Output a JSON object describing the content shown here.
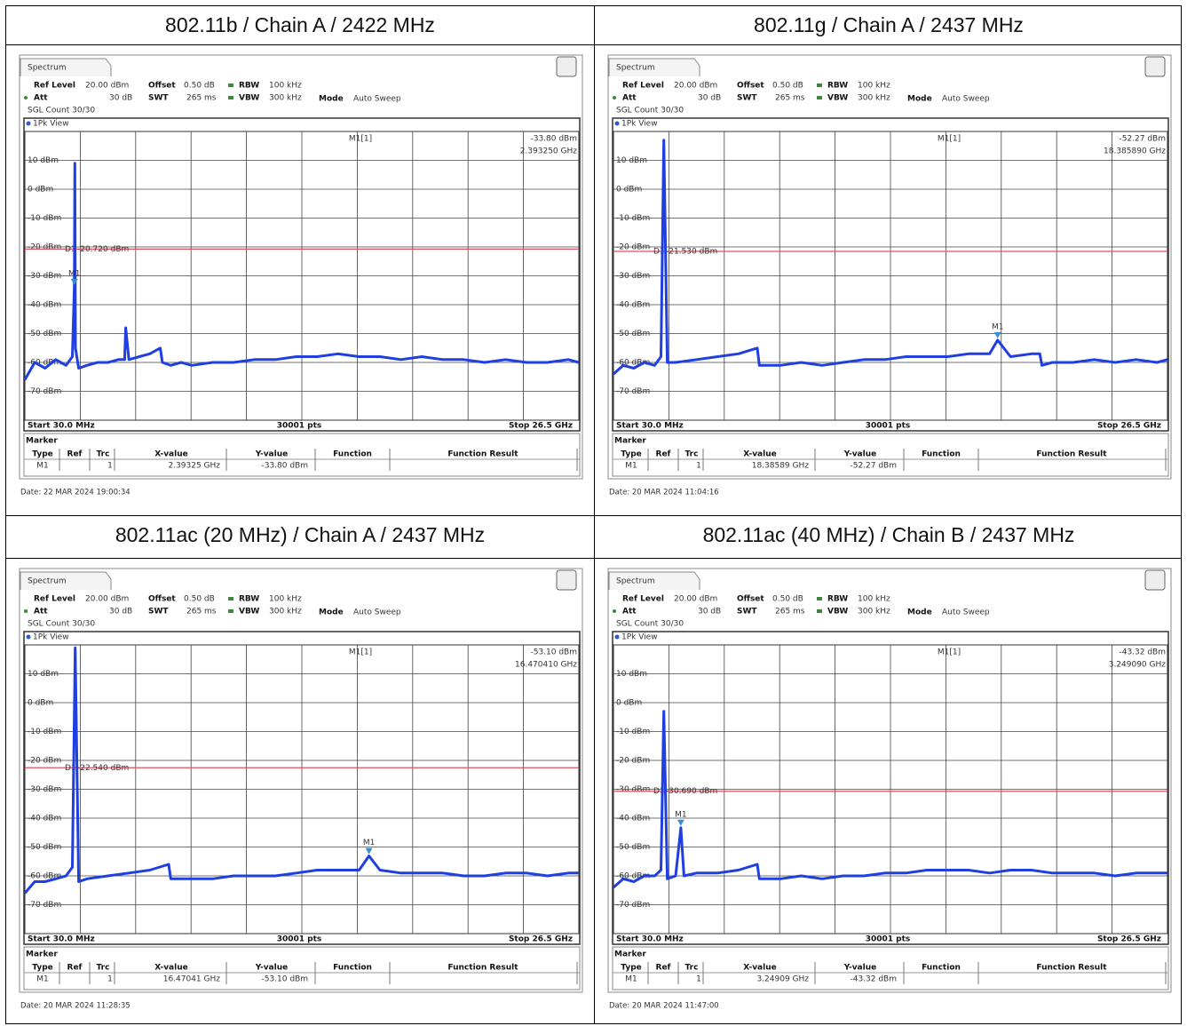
{
  "chart_data": [
    {
      "type": "line",
      "title": "802.11b / Chain A / 2422 MHz",
      "tab": "Spectrum",
      "settings": {
        "ref_level_label": "Ref Level",
        "ref_level": "20.00 dBm",
        "offset_label": "Offset",
        "offset": "0.50 dB",
        "rbw_label": "RBW",
        "rbw": "100 kHz",
        "att_label": "Att",
        "att": "30 dB",
        "swt_label": "SWT",
        "swt": "265 ms",
        "vbw_label": "VBW",
        "vbw": "300 kHz",
        "mode_label": "Mode",
        "mode": "Auto Sweep",
        "count": "SGL Count 30/30"
      },
      "view": "1Pk View",
      "start_label": "Start 30.0 MHz",
      "points_label": "30001 pts",
      "stop_label": "Stop 26.5 GHz",
      "xlim": [
        0.03,
        26.5
      ],
      "ylim": [
        -80,
        20
      ],
      "yticks": [
        {
          "value": 10,
          "label": "10 dBm"
        },
        {
          "value": 0,
          "label": "0 dBm"
        },
        {
          "value": -10,
          "label": "-10 dBm"
        },
        {
          "value": -20,
          "label": "-20 dBm"
        },
        {
          "value": -30,
          "label": "-30 dBm"
        },
        {
          "value": -40,
          "label": "-40 dBm"
        },
        {
          "value": -50,
          "label": "-50 dBm"
        },
        {
          "value": -60,
          "label": "-60 dBm"
        },
        {
          "value": -70,
          "label": "-70 dBm"
        }
      ],
      "grid": true,
      "color": "#1f3fe0",
      "x": [
        0.03,
        0.5,
        1,
        1.5,
        2,
        2.3,
        2.39325,
        2.42,
        2.45,
        2.6,
        3,
        3.5,
        4,
        4.5,
        4.8,
        4.85,
        5,
        5.5,
        6,
        6.5,
        6.6,
        7,
        7.5,
        8,
        9,
        10,
        11,
        12,
        13,
        14,
        15,
        16,
        17,
        18,
        19,
        20,
        21,
        22,
        23,
        24,
        25,
        26,
        26.5
      ],
      "values": [
        -66,
        -60,
        -62,
        -59,
        -61,
        -58,
        -33.8,
        9,
        -55,
        -62,
        -61,
        -60,
        -60,
        -59,
        -59,
        -48,
        -59,
        -58,
        -57,
        -55,
        -60,
        -61,
        -60,
        -61,
        -60,
        -60,
        -59,
        -59,
        -58,
        -58,
        -57,
        -58,
        -58,
        -59,
        -58,
        -59,
        -59,
        -60,
        -59,
        -60,
        -60,
        -59,
        -60
      ],
      "display_line": {
        "name": "D1",
        "value": -20.72,
        "label": "-20.720 dBm",
        "color": "#e0505e"
      },
      "marker": {
        "name": "M1",
        "readout_name": "M1[1]",
        "x": 2.39325,
        "y": -33.8,
        "x_label": "2.39325 GHz",
        "y_label": "-33.80 dBm",
        "readout_x": "2.393250 GHz",
        "trace": "1"
      },
      "marker_table": {
        "title": "Marker",
        "headers": [
          "Type",
          "Ref",
          "Trc",
          "X-value",
          "Y-value",
          "Function",
          "Function Result"
        ]
      },
      "date": "Date: 22 MAR 2024 19:00:34"
    },
    {
      "type": "line",
      "title": "802.11g / Chain A / 2437 MHz",
      "tab": "Spectrum",
      "settings": {
        "ref_level_label": "Ref Level",
        "ref_level": "20.00 dBm",
        "offset_label": "Offset",
        "offset": "0.50 dB",
        "rbw_label": "RBW",
        "rbw": "100 kHz",
        "att_label": "Att",
        "att": "30 dB",
        "swt_label": "SWT",
        "swt": "265 ms",
        "vbw_label": "VBW",
        "vbw": "300 kHz",
        "mode_label": "Mode",
        "mode": "Auto Sweep",
        "count": "SGL Count 30/30"
      },
      "view": "1Pk View",
      "start_label": "Start 30.0 MHz",
      "points_label": "30001 pts",
      "stop_label": "Stop 26.5 GHz",
      "xlim": [
        0.03,
        26.5
      ],
      "ylim": [
        -80,
        20
      ],
      "yticks": [
        {
          "value": 10,
          "label": "10 dBm"
        },
        {
          "value": 0,
          "label": "0 dBm"
        },
        {
          "value": -10,
          "label": "-10 dBm"
        },
        {
          "value": -20,
          "label": "-20 dBm"
        },
        {
          "value": -30,
          "label": "-30 dBm"
        },
        {
          "value": -40,
          "label": "-40 dBm"
        },
        {
          "value": -50,
          "label": "-50 dBm"
        },
        {
          "value": -60,
          "label": "-60 dBm"
        },
        {
          "value": -70,
          "label": "-70 dBm"
        }
      ],
      "grid": true,
      "color": "#1f3fe0",
      "x": [
        0.03,
        0.5,
        1,
        1.5,
        2,
        2.3,
        2.437,
        2.6,
        3,
        4,
        5,
        6,
        6.9,
        7,
        8,
        9,
        10,
        11,
        12,
        13,
        14,
        15,
        16,
        17,
        18,
        18.38589,
        19,
        20,
        20.4,
        20.5,
        21,
        22,
        23,
        24,
        25,
        26,
        26.5
      ],
      "values": [
        -64,
        -61,
        -62,
        -60,
        -61,
        -58,
        17,
        -60,
        -60,
        -59,
        -58,
        -57,
        -55,
        -61,
        -61,
        -60,
        -61,
        -60,
        -59,
        -59,
        -58,
        -58,
        -58,
        -57,
        -57,
        -52.27,
        -58,
        -57,
        -57,
        -61,
        -60,
        -60,
        -59,
        -60,
        -59,
        -60,
        -59
      ],
      "display_line": {
        "name": "D1",
        "value": -21.53,
        "label": "-21.530 dBm",
        "color": "#e0505e"
      },
      "marker": {
        "name": "M1",
        "readout_name": "M1[1]",
        "x": 18.38589,
        "y": -52.27,
        "x_label": "18.38589 GHz",
        "y_label": "-52.27 dBm",
        "readout_x": "18.385890 GHz",
        "trace": "1"
      },
      "marker_table": {
        "title": "Marker",
        "headers": [
          "Type",
          "Ref",
          "Trc",
          "X-value",
          "Y-value",
          "Function",
          "Function Result"
        ]
      },
      "date": "Date: 20 MAR 2024 11:04:16"
    },
    {
      "type": "line",
      "title": "802.11ac (20 MHz) / Chain A / 2437 MHz",
      "tab": "Spectrum",
      "settings": {
        "ref_level_label": "Ref Level",
        "ref_level": "20.00 dBm",
        "offset_label": "Offset",
        "offset": "0.50 dB",
        "rbw_label": "RBW",
        "rbw": "100 kHz",
        "att_label": "Att",
        "att": "30 dB",
        "swt_label": "SWT",
        "swt": "265 ms",
        "vbw_label": "VBW",
        "vbw": "300 kHz",
        "mode_label": "Mode",
        "mode": "Auto Sweep",
        "count": "SGL Count 30/30"
      },
      "view": "1Pk View",
      "start_label": "Start 30.0 MHz",
      "points_label": "30001 pts",
      "stop_label": "Stop 26.5 GHz",
      "xlim": [
        0.03,
        26.5
      ],
      "ylim": [
        -80,
        20
      ],
      "yticks": [
        {
          "value": 10,
          "label": "10 dBm"
        },
        {
          "value": 0,
          "label": "0 dBm"
        },
        {
          "value": -10,
          "label": "-10 dBm"
        },
        {
          "value": -20,
          "label": "-20 dBm"
        },
        {
          "value": -30,
          "label": "-30 dBm"
        },
        {
          "value": -40,
          "label": "-40 dBm"
        },
        {
          "value": -50,
          "label": "-50 dBm"
        },
        {
          "value": -60,
          "label": "-60 dBm"
        },
        {
          "value": -70,
          "label": "-70 dBm"
        }
      ],
      "grid": true,
      "color": "#1f3fe0",
      "x": [
        0.03,
        0.5,
        1,
        1.5,
        2,
        2.3,
        2.437,
        2.6,
        3,
        4,
        5,
        6,
        6.9,
        7,
        8,
        9,
        10,
        11,
        12,
        13,
        14,
        15,
        16,
        16.47041,
        17,
        18,
        19,
        20,
        21,
        22,
        23,
        24,
        25,
        26,
        26.5
      ],
      "values": [
        -66,
        -62,
        -62,
        -61,
        -60,
        -57,
        19,
        -62,
        -61,
        -60,
        -59,
        -58,
        -56,
        -61,
        -61,
        -61,
        -60,
        -60,
        -60,
        -59,
        -58,
        -58,
        -58,
        -53.1,
        -58,
        -59,
        -59,
        -59,
        -60,
        -60,
        -59,
        -59,
        -60,
        -59,
        -59
      ],
      "display_line": {
        "name": "D1",
        "value": -22.54,
        "label": "-22.540 dBm",
        "color": "#e0505e"
      },
      "marker": {
        "name": "M1",
        "readout_name": "M1[1]",
        "x": 16.47041,
        "y": -53.1,
        "x_label": "16.47041 GHz",
        "y_label": "-53.10 dBm",
        "readout_x": "16.470410 GHz",
        "trace": "1"
      },
      "marker_table": {
        "title": "Marker",
        "headers": [
          "Type",
          "Ref",
          "Trc",
          "X-value",
          "Y-value",
          "Function",
          "Function Result"
        ]
      },
      "date": "Date: 20 MAR 2024 11:28:35"
    },
    {
      "type": "line",
      "title": "802.11ac (40 MHz) / Chain B / 2437 MHz",
      "tab": "Spectrum",
      "settings": {
        "ref_level_label": "Ref Level",
        "ref_level": "20.00 dBm",
        "offset_label": "Offset",
        "offset": "0.50 dB",
        "rbw_label": "RBW",
        "rbw": "100 kHz",
        "att_label": "Att",
        "att": "30 dB",
        "swt_label": "SWT",
        "swt": "265 ms",
        "vbw_label": "VBW",
        "vbw": "300 kHz",
        "mode_label": "Mode",
        "mode": "Auto Sweep",
        "count": "SGL Count 30/30"
      },
      "view": "1Pk View",
      "start_label": "Start 30.0 MHz",
      "points_label": "30001 pts",
      "stop_label": "Stop 26.5 GHz",
      "xlim": [
        0.03,
        26.5
      ],
      "ylim": [
        -80,
        20
      ],
      "yticks": [
        {
          "value": 10,
          "label": "10 dBm"
        },
        {
          "value": 0,
          "label": "0 dBm"
        },
        {
          "value": -10,
          "label": "-10 dBm"
        },
        {
          "value": -20,
          "label": "-20 dBm"
        },
        {
          "value": -30,
          "label": "-30 dBm"
        },
        {
          "value": -40,
          "label": "-40 dBm"
        },
        {
          "value": -50,
          "label": "-50 dBm"
        },
        {
          "value": -60,
          "label": "-60 dBm"
        },
        {
          "value": -70,
          "label": "-70 dBm"
        }
      ],
      "grid": true,
      "color": "#1f3fe0",
      "x": [
        0.03,
        0.5,
        1,
        1.5,
        2,
        2.3,
        2.437,
        2.6,
        3,
        3.24909,
        3.4,
        4,
        5,
        6,
        6.9,
        7,
        8,
        9,
        10,
        11,
        12,
        13,
        14,
        15,
        16,
        17,
        18,
        19,
        20,
        21,
        22,
        23,
        24,
        25,
        26,
        26.5
      ],
      "values": [
        -64,
        -61,
        -62,
        -60,
        -60,
        -58,
        -3,
        -61,
        -60,
        -43.32,
        -60,
        -59,
        -59,
        -58,
        -56,
        -61,
        -61,
        -60,
        -61,
        -60,
        -60,
        -59,
        -59,
        -58,
        -58,
        -58,
        -59,
        -58,
        -58,
        -59,
        -59,
        -59,
        -60,
        -59,
        -59,
        -59
      ],
      "display_line": {
        "name": "D1",
        "value": -30.69,
        "label": "-30.690 dBm",
        "color": "#e0505e"
      },
      "marker": {
        "name": "M1",
        "readout_name": "M1[1]",
        "x": 3.24909,
        "y": -43.32,
        "x_label": "3.24909 GHz",
        "y_label": "-43.32 dBm",
        "readout_x": "3.249090 GHz",
        "trace": "1"
      },
      "marker_table": {
        "title": "Marker",
        "headers": [
          "Type",
          "Ref",
          "Trc",
          "X-value",
          "Y-value",
          "Function",
          "Function Result"
        ]
      },
      "date": "Date: 20 MAR 2024 11:47:00"
    }
  ]
}
